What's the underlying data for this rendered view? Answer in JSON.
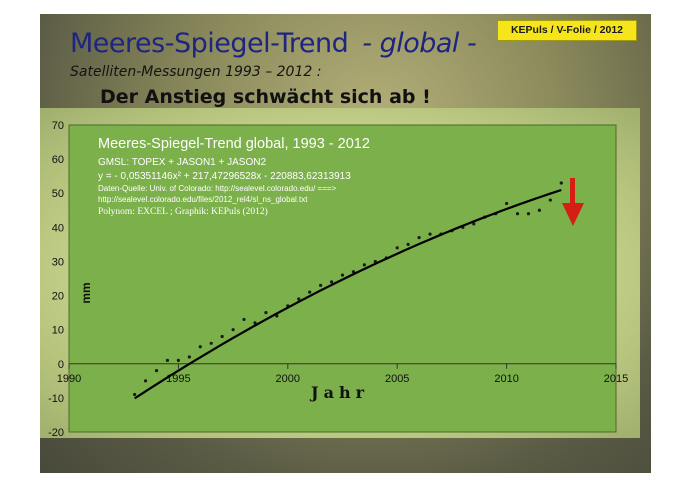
{
  "slide": {
    "tag": "KEPuls / V-Folie / 2012",
    "title_main": "Meeres-Spiegel-Trend",
    "title_sub": "- global -",
    "subtitle": "Satelliten-Messungen 1993 – 2012 :",
    "headline": "Der Anstieg schwächt sich ab !"
  },
  "colors": {
    "plot_background": "#7cb04a",
    "data_points": "#1a1a1a",
    "trend_line": "#000000",
    "arrow": "#d41f12",
    "title_text": "#1d2580",
    "tag_background": "#f6e51a"
  },
  "annotation_icon": "red-down-arrow",
  "chart_data": {
    "type": "scatter",
    "title": "Meeres-Spiegel-Trend global, 1993 - 2012",
    "info_lines": [
      "GMSL: TOPEX + JASON1 + JASON2",
      "y =  - 0,05351146x² + 217,47296528x - 220883,62313913",
      "Daten-Quelle: Univ. of Colorado: http://sealevel.colorado.edu/ ===>",
      "http://sealevel.colorado.edu/files/2012_rel4/sl_ns_global.txt",
      "Polynom: EXCEL ; Graphik: KEPuls (2012)"
    ],
    "xlabel": "Jahr",
    "ylabel": "mm",
    "xlim": [
      1990,
      2015
    ],
    "ylim": [
      -20,
      70
    ],
    "xticks": [
      1990,
      1995,
      2000,
      2005,
      2010,
      2015
    ],
    "yticks": [
      -20,
      -10,
      0,
      10,
      20,
      30,
      40,
      50,
      60,
      70
    ],
    "grid": false,
    "legend": "none",
    "trend": {
      "type": "polynomial",
      "degree": 2,
      "coefficients": [
        -0.05351146,
        217.47296528,
        -220883.62313913
      ],
      "x_range": [
        1993,
        2012.5
      ]
    },
    "series": [
      {
        "x": [
          1993.0,
          1993.5,
          1994.0,
          1994.5,
          1995.0,
          1995.5,
          1996.0,
          1996.5,
          1997.0,
          1997.5,
          1998.0,
          1998.5,
          1999.0,
          1999.5,
          2000.0,
          2000.5,
          2001.0,
          2001.5,
          2002.0,
          2002.5,
          2003.0,
          2003.5,
          2004.0,
          2004.5,
          2005.0,
          2005.5,
          2006.0,
          2006.5,
          2007.0,
          2007.5,
          2008.0,
          2008.5,
          2009.0,
          2009.5,
          2010.0,
          2010.5,
          2011.0,
          2011.5,
          2012.0,
          2012.5
        ],
        "values": [
          -9,
          -5,
          -2,
          1,
          1,
          2,
          5,
          6,
          8,
          10,
          13,
          12,
          15,
          14,
          17,
          19,
          21,
          23,
          24,
          26,
          27,
          29,
          30,
          31,
          34,
          35,
          37,
          38,
          38,
          39,
          40,
          41,
          43,
          44,
          47,
          44,
          44,
          45,
          48,
          53
        ]
      }
    ]
  }
}
